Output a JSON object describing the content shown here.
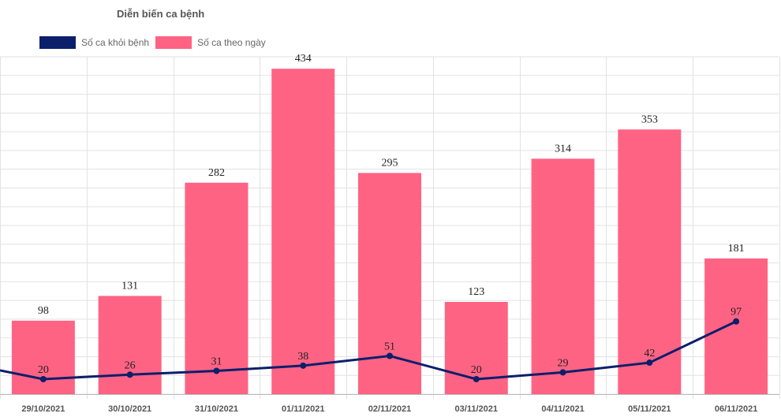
{
  "colors": {
    "recovered": "#0b1f6b",
    "daily": "#ff6384"
  },
  "chart_data": {
    "type": "bar",
    "title": "Diễn biến ca bệnh",
    "categories": [
      "29/10/2021",
      "30/10/2021",
      "31/10/2021",
      "01/11/2021",
      "02/11/2021",
      "03/11/2021",
      "04/11/2021",
      "05/11/2021",
      "06/11/2021"
    ],
    "series": [
      {
        "name": "Số ca khỏi bệnh",
        "type": "line",
        "values": [
          20,
          26,
          31,
          38,
          51,
          20,
          29,
          42,
          97
        ]
      },
      {
        "name": "Số ca theo ngày",
        "type": "bar",
        "values": [
          98,
          131,
          282,
          434,
          295,
          123,
          314,
          353,
          181
        ]
      }
    ],
    "ylim": [
      0,
      450
    ],
    "grid": true,
    "legend": "top-left"
  }
}
